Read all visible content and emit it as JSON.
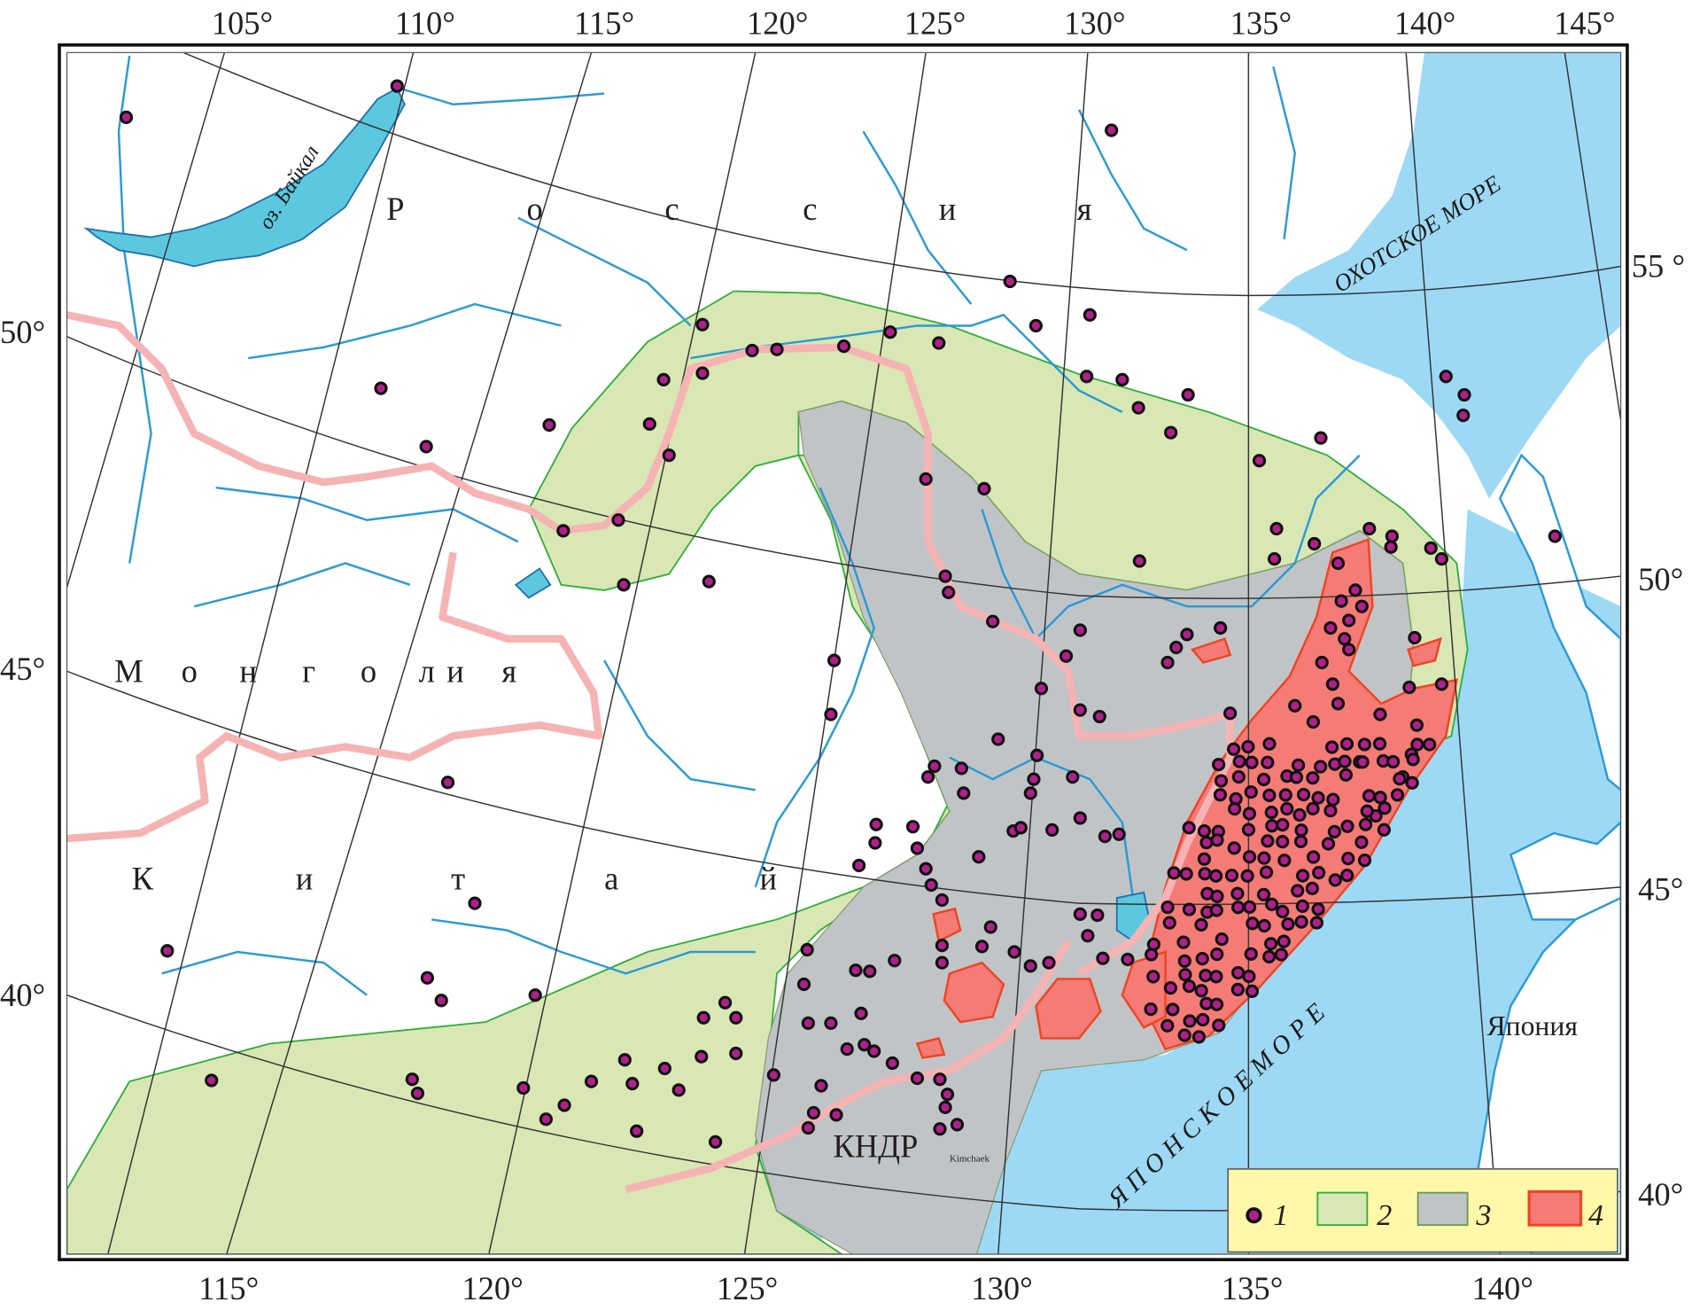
{
  "map": {
    "top_longitude_labels": [
      "105°",
      "110°",
      "115°",
      "120°",
      "125°",
      "130°",
      "135°",
      "140°",
      "145°"
    ],
    "bottom_longitude_labels": [
      "115°",
      "120°",
      "125°",
      "130°",
      "135°",
      "140°"
    ],
    "left_latitude_labels": [
      "50°",
      "45°",
      "40°"
    ],
    "right_latitude_labels": [
      "55 °",
      "50°",
      "45°",
      "40°"
    ],
    "country_labels": {
      "russia": [
        "Р",
        "о",
        "с",
        "с",
        "и",
        "я"
      ],
      "mongolia": [
        "М",
        "о",
        "н",
        "г",
        "о",
        "л",
        "и",
        "я"
      ],
      "china": [
        "К",
        "и",
        "т",
        "а",
        "й"
      ],
      "north_korea": "КНДР",
      "japan": "Япония"
    },
    "water_labels": {
      "baikal": "оз. Байкал",
      "okhotsk_sea": "ОХОТСКОЕ МОРЕ",
      "japan_sea": "Я П О Н С К О Е   М О Р Е"
    },
    "city_label": "Kimchaek",
    "colors": {
      "water": "#9dd9f5",
      "lake": "#5bc8de",
      "river": "#2a9ad6",
      "zone2": "#d9e7b4",
      "zone3": "#c1c4c6",
      "zone4": "#f47b76",
      "zone4_border": "#ef4423",
      "border": "#f6b3b3",
      "dot": "#b0208a",
      "legend_bg": "#fff8a8"
    }
  },
  "legend": {
    "items": [
      {
        "symbol": "dot",
        "label": "1"
      },
      {
        "symbol": "green-area",
        "label": "2"
      },
      {
        "symbol": "gray-area",
        "label": "3"
      },
      {
        "symbol": "red-area",
        "label": "4"
      }
    ]
  }
}
